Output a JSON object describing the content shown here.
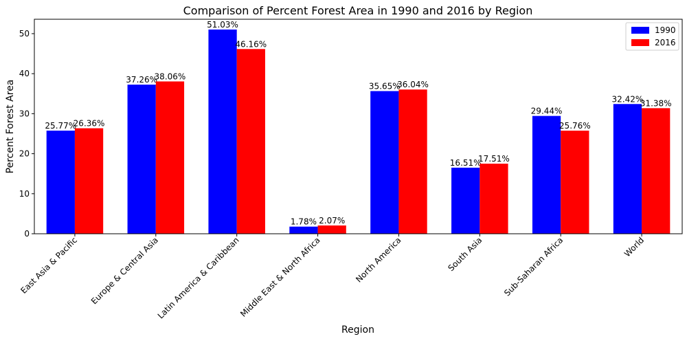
{
  "chart_data": {
    "type": "bar",
    "title": "Comparison of Percent Forest Area in 1990 and 2016 by Region",
    "xlabel": "Region",
    "ylabel": "Percent Forest Area",
    "categories": [
      "East Asia & Pacific",
      "Europe & Central Asia",
      "Latin America & Caribbean",
      "Middle East & North Africa",
      "North America",
      "South Asia",
      "Sub-Saharan Africa",
      "World"
    ],
    "series": [
      {
        "name": "1990",
        "color": "#0000ff",
        "values": [
          25.77,
          37.26,
          51.03,
          1.78,
          35.65,
          16.51,
          29.44,
          32.42
        ],
        "labels": [
          "25.77%",
          "37.26%",
          "51.03%",
          "1.78%",
          "35.65%",
          "16.51%",
          "29.44%",
          "32.42%"
        ]
      },
      {
        "name": "2016",
        "color": "#ff0000",
        "values": [
          26.36,
          38.06,
          46.16,
          2.07,
          36.04,
          17.51,
          25.76,
          31.38
        ],
        "labels": [
          "26.36%",
          "38.06%",
          "46.16%",
          "2.07%",
          "36.04%",
          "17.51%",
          "25.76%",
          "31.38%"
        ]
      }
    ],
    "ylim": [
      0,
      53.6
    ],
    "yticks": [
      0,
      10,
      20,
      30,
      40,
      50
    ],
    "grid": false,
    "legend_position": "upper-right"
  }
}
